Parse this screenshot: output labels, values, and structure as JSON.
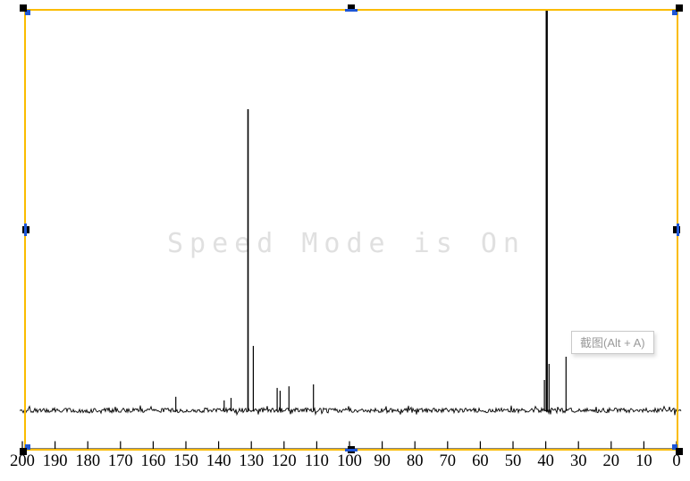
{
  "watermark": {
    "text": "Speed Mode is On",
    "color": "#e0e0e0"
  },
  "tooltip": {
    "label": "截图(Alt + A)"
  },
  "selection": {
    "border_color": "#FBBC00",
    "handle_color": "#000000",
    "handle_accent_color": "#1E56D6"
  },
  "chart_data": {
    "type": "line",
    "title": "",
    "xlabel": "",
    "ylabel": "",
    "xlim": [
      200,
      0
    ],
    "grid": false,
    "x_ticks": [
      200,
      190,
      180,
      170,
      160,
      150,
      140,
      130,
      120,
      110,
      100,
      90,
      80,
      70,
      60,
      50,
      40,
      30,
      20,
      10,
      0
    ],
    "x_tick_labels": [
      "200",
      "190",
      "180",
      "170",
      "160",
      "150",
      "140",
      "130",
      "120",
      "110",
      "100",
      "90",
      "80",
      "70",
      "60",
      "50",
      "40",
      "30",
      "20",
      "10",
      "0"
    ],
    "description": "13C NMR-style spectrum, intensity vs chemical shift (ppm), noisy baseline",
    "peaks": [
      {
        "ppm": 153.1,
        "height": 0.034
      },
      {
        "ppm": 138.3,
        "height": 0.025
      },
      {
        "ppm": 136.2,
        "height": 0.031
      },
      {
        "ppm": 131.0,
        "height": 0.752,
        "width": 1.6
      },
      {
        "ppm": 129.4,
        "height": 0.161
      },
      {
        "ppm": 122.1,
        "height": 0.056
      },
      {
        "ppm": 121.2,
        "height": 0.049
      },
      {
        "ppm": 118.5,
        "height": 0.06
      },
      {
        "ppm": 111.0,
        "height": 0.065
      },
      {
        "ppm": 40.4,
        "height": 0.076
      },
      {
        "ppm": 39.7,
        "height": 1.0,
        "width": 2.4
      },
      {
        "ppm": 39.0,
        "height": 0.116
      },
      {
        "ppm": 33.8,
        "height": 0.134
      }
    ]
  }
}
